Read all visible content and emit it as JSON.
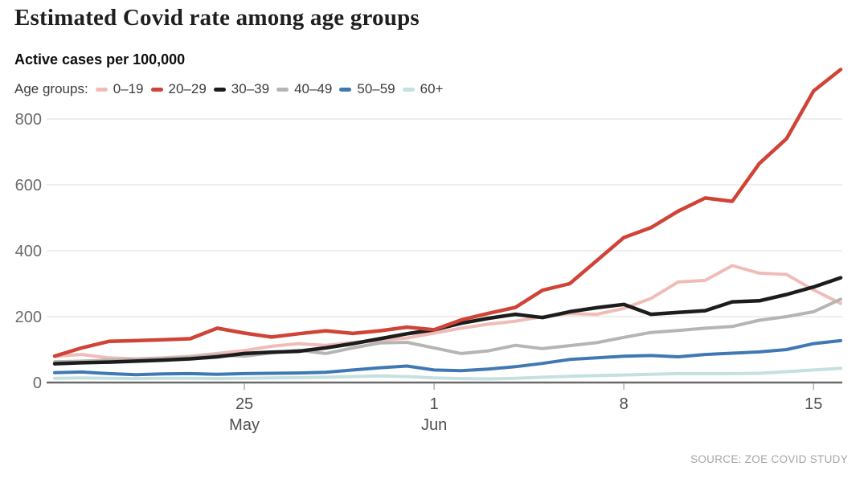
{
  "title": "Estimated Covid rate among age groups",
  "subtitle": "Active cases per 100,000",
  "legend": {
    "label": "Age groups:"
  },
  "source": "SOURCE: ZOE COVID STUDY",
  "chart_data": {
    "type": "line",
    "title": "Estimated Covid rate among age groups",
    "ylabel": "Active cases per 100,000",
    "xlabel": "",
    "grid": "horizontal",
    "legend_position": "top",
    "ylim": [
      0,
      960
    ],
    "yticks": [
      0,
      200,
      400,
      600,
      800
    ],
    "xticks": [
      {
        "index": 7,
        "day": "25",
        "month": "May"
      },
      {
        "index": 14,
        "day": "1",
        "month": "Jun"
      },
      {
        "index": 21,
        "day": "8",
        "month": ""
      },
      {
        "index": 28,
        "day": "15",
        "month": ""
      }
    ],
    "x": [
      "May 18",
      "May 19",
      "May 20",
      "May 21",
      "May 22",
      "May 23",
      "May 24",
      "May 25",
      "May 26",
      "May 27",
      "May 28",
      "May 29",
      "May 30",
      "May 31",
      "Jun 1",
      "Jun 2",
      "Jun 3",
      "Jun 4",
      "Jun 5",
      "Jun 6",
      "Jun 7",
      "Jun 8",
      "Jun 9",
      "Jun 10",
      "Jun 11",
      "Jun 12",
      "Jun 13",
      "Jun 14",
      "Jun 15",
      "Jun 16"
    ],
    "series": [
      {
        "name": "0–19",
        "color": "#f0bcb8",
        "values": [
          80,
          85,
          75,
          72,
          75,
          80,
          88,
          97,
          110,
          118,
          113,
          122,
          128,
          135,
          150,
          165,
          177,
          186,
          200,
          209,
          207,
          225,
          255,
          305,
          310,
          355,
          332,
          328,
          281,
          240
        ]
      },
      {
        "name": "20–29",
        "color": "#cf4436",
        "values": [
          80,
          105,
          125,
          127,
          130,
          133,
          165,
          150,
          138,
          148,
          157,
          149,
          157,
          168,
          160,
          190,
          210,
          228,
          280,
          300,
          370,
          440,
          470,
          520,
          560,
          550,
          665,
          740,
          885,
          950
        ]
      },
      {
        "name": "30–39",
        "color": "#1c1c1c",
        "values": [
          57,
          60,
          62,
          65,
          68,
          72,
          78,
          88,
          92,
          95,
          105,
          118,
          133,
          148,
          160,
          180,
          195,
          207,
          197,
          215,
          227,
          237,
          207,
          213,
          218,
          245,
          248,
          267,
          290,
          318
        ]
      },
      {
        "name": "40–49",
        "color": "#b5b5b4",
        "values": [
          63,
          65,
          68,
          70,
          73,
          76,
          84,
          80,
          90,
          98,
          88,
          105,
          120,
          122,
          105,
          88,
          96,
          113,
          103,
          112,
          121,
          137,
          152,
          158,
          165,
          170,
          189,
          200,
          215,
          253
        ]
      },
      {
        "name": "50–59",
        "color": "#4078b4",
        "values": [
          30,
          32,
          27,
          24,
          26,
          27,
          25,
          27,
          28,
          29,
          31,
          38,
          45,
          50,
          38,
          36,
          41,
          48,
          58,
          70,
          75,
          80,
          82,
          78,
          85,
          89,
          93,
          100,
          118,
          127
        ]
      },
      {
        "name": "60+",
        "color": "#c4e1e0",
        "values": [
          13,
          14,
          13,
          12,
          13,
          13,
          12,
          13,
          14,
          15,
          16,
          18,
          20,
          18,
          14,
          12,
          11,
          13,
          16,
          19,
          21,
          23,
          25,
          27,
          27,
          27,
          28,
          33,
          38,
          43
        ]
      }
    ]
  }
}
